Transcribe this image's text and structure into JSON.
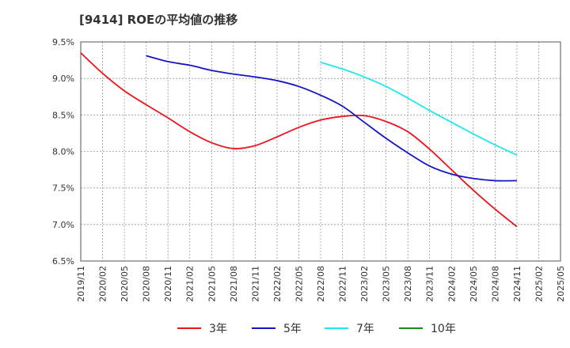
{
  "chart_data": {
    "type": "line",
    "title": "[9414]  ROEの平均値の推移",
    "xlabel": "",
    "ylabel": "",
    "ylim": [
      6.5,
      9.5
    ],
    "yticks": [
      "6.5%",
      "7.0%",
      "7.5%",
      "8.0%",
      "8.5%",
      "9.0%",
      "9.5%"
    ],
    "categories": [
      "2019/11",
      "2020/02",
      "2020/05",
      "2020/08",
      "2020/11",
      "2021/02",
      "2021/05",
      "2021/08",
      "2021/11",
      "2022/02",
      "2022/05",
      "2022/08",
      "2022/11",
      "2023/02",
      "2023/05",
      "2023/08",
      "2023/11",
      "2024/02",
      "2024/05",
      "2024/08",
      "2024/11",
      "2025/02",
      "2025/05"
    ],
    "grid": true,
    "legend_position": "bottom",
    "series": [
      {
        "name": "3年",
        "color": "#e8161b",
        "values": [
          9.35,
          9.07,
          8.83,
          8.64,
          8.46,
          8.27,
          8.12,
          8.04,
          8.08,
          8.2,
          8.33,
          8.43,
          8.48,
          8.49,
          8.41,
          8.27,
          8.03,
          7.75,
          7.47,
          7.21,
          6.97,
          null,
          null
        ]
      },
      {
        "name": "5年",
        "color": "#1515c8",
        "values": [
          null,
          null,
          null,
          9.31,
          9.23,
          9.18,
          9.11,
          9.06,
          9.02,
          8.97,
          8.89,
          8.77,
          8.62,
          8.4,
          8.18,
          7.98,
          7.8,
          7.69,
          7.63,
          7.6,
          7.6,
          null,
          null
        ]
      },
      {
        "name": "7年",
        "color": "#1de8ec",
        "values": [
          null,
          null,
          null,
          null,
          null,
          null,
          null,
          null,
          null,
          null,
          null,
          9.22,
          9.13,
          9.02,
          8.89,
          8.73,
          8.56,
          8.4,
          8.24,
          8.09,
          7.95,
          null,
          null
        ]
      },
      {
        "name": "10年",
        "color": "#1a8a1a",
        "values": [
          null,
          null,
          null,
          null,
          null,
          null,
          null,
          null,
          null,
          null,
          null,
          null,
          null,
          null,
          null,
          null,
          null,
          null,
          null,
          null,
          null,
          null,
          null
        ]
      }
    ]
  }
}
